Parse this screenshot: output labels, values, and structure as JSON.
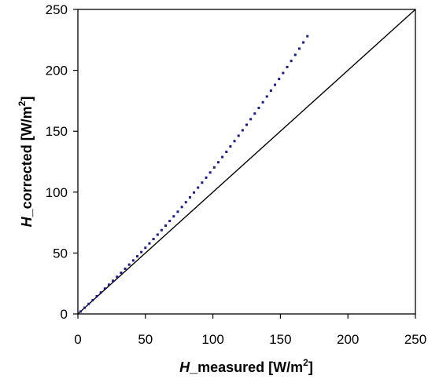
{
  "chart_data": {
    "type": "scatter",
    "title": "",
    "xlabel": {
      "italic": "H",
      "text": "_measured [W/m",
      "sup": "2",
      "tail": "]"
    },
    "ylabel": {
      "italic": "H",
      "text": "_corrected [W/m",
      "sup": "2",
      "tail": "]"
    },
    "xlim": [
      0,
      250
    ],
    "ylim": [
      0,
      250
    ],
    "x_ticks": [
      "0",
      "50",
      "100",
      "150",
      "200",
      "250"
    ],
    "y_ticks": [
      "0",
      "50",
      "100",
      "150",
      "200",
      "250"
    ],
    "grid": false,
    "legend": "none",
    "point_color": "#1a1a8c",
    "reference_line": {
      "type": "1:1",
      "from": [
        0,
        0
      ],
      "to": [
        250,
        250
      ],
      "color": "#000000"
    },
    "series": [
      {
        "x": [
          2,
          5,
          8,
          11,
          14,
          17,
          20,
          23,
          26,
          29,
          32,
          35,
          38,
          41,
          44,
          47,
          50,
          53,
          56,
          59,
          62,
          65,
          68,
          71,
          74,
          77,
          80,
          83,
          86,
          89,
          92,
          95,
          98,
          101,
          104,
          107,
          110,
          113,
          116,
          119,
          122,
          125,
          128,
          131,
          134,
          137,
          140,
          143,
          146,
          149,
          152,
          155,
          158,
          161,
          164,
          167,
          170
        ],
        "y": [
          2,
          5.1,
          8.2,
          11.3,
          14.5,
          17.6,
          20.8,
          24,
          27.2,
          30.5,
          33.8,
          37.1,
          40.5,
          43.9,
          47.3,
          50.8,
          54.3,
          57.9,
          61.5,
          65.1,
          68.8,
          72.5,
          76.3,
          80.1,
          83.9,
          87.8,
          91.7,
          95.7,
          99.7,
          103.7,
          107.8,
          111.9,
          116.1,
          120.3,
          124.5,
          128.8,
          133.1,
          137.5,
          141.9,
          146.3,
          150.8,
          155.3,
          159.9,
          164.5,
          169.1,
          173.8,
          178.5,
          183.3,
          188.1,
          192.9,
          197.8,
          202.7,
          207.7,
          212.7,
          217.8,
          222.9,
          228
        ]
      }
    ]
  }
}
